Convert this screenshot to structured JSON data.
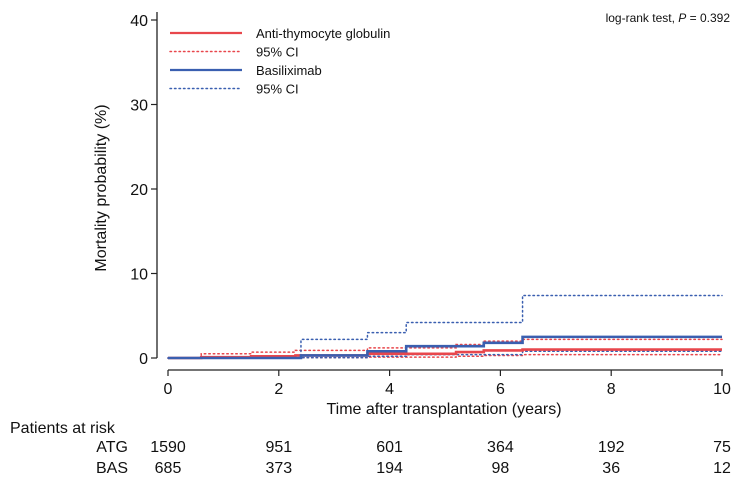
{
  "chart_data": {
    "type": "line",
    "subtype": "kaplan-meier step",
    "title": "",
    "xlabel": "Time after transplantation (years)",
    "ylabel": "Mortality probability (%)",
    "xlim": [
      0,
      10
    ],
    "ylim": [
      0,
      40
    ],
    "xticks": [
      0,
      2,
      4,
      6,
      8,
      10
    ],
    "yticks": [
      0,
      10,
      20,
      30,
      40
    ],
    "grid": false,
    "legend_position": "top-left",
    "annotation": {
      "prefix": "log-rank test, ",
      "p_symbol": "P",
      "p_value": " = 0.392"
    },
    "series": [
      {
        "name": "Anti-thymocyte globulin",
        "color": "#e8474c",
        "style": "solid",
        "x": [
          0,
          0.6,
          1.5,
          2.3,
          3.6,
          5.2,
          5.7,
          6.4,
          10
        ],
        "y": [
          0,
          0.1,
          0.2,
          0.3,
          0.5,
          0.7,
          0.9,
          1.0,
          1.0
        ]
      },
      {
        "name": "95% CI",
        "color": "#e8474c",
        "style": "dotted",
        "x": [
          0,
          0.6,
          1.5,
          2.3,
          3.6,
          5.2,
          5.7,
          6.4,
          10
        ],
        "y": [
          0,
          0.5,
          0.7,
          0.9,
          1.2,
          1.6,
          2.0,
          2.2,
          2.2
        ]
      },
      {
        "name": "",
        "color": "#e8474c",
        "style": "dotted",
        "x": [
          0,
          2.3,
          3.6,
          5.2,
          5.7,
          6.4,
          10
        ],
        "y": [
          0,
          0.05,
          0.1,
          0.2,
          0.3,
          0.4,
          0.4
        ]
      },
      {
        "name": "Basiliximab",
        "color": "#3a5fb0",
        "style": "solid",
        "x": [
          0,
          2.4,
          3.6,
          4.3,
          5.7,
          6.4,
          10
        ],
        "y": [
          0,
          0.3,
          0.8,
          1.4,
          1.8,
          2.5,
          2.5
        ]
      },
      {
        "name": "95% CI",
        "color": "#3a5fb0",
        "style": "dotted",
        "x": [
          0,
          2.4,
          3.6,
          4.3,
          5.7,
          6.4,
          10
        ],
        "y": [
          0,
          2.2,
          3.0,
          4.2,
          4.2,
          7.4,
          7.4
        ]
      },
      {
        "name": "",
        "color": "#3a5fb0",
        "style": "dotted",
        "x": [
          0,
          2.4,
          3.6,
          4.3,
          6.4,
          10
        ],
        "y": [
          0,
          0.05,
          0.2,
          0.4,
          0.8,
          0.8
        ]
      }
    ],
    "risk_table": {
      "title": "Patients at risk",
      "time_points": [
        0,
        2,
        4,
        6,
        8,
        10
      ],
      "rows": [
        {
          "label": "ATG",
          "values": [
            1590,
            951,
            601,
            364,
            192,
            75
          ]
        },
        {
          "label": "BAS",
          "values": [
            685,
            373,
            194,
            98,
            36,
            12
          ]
        }
      ]
    }
  }
}
